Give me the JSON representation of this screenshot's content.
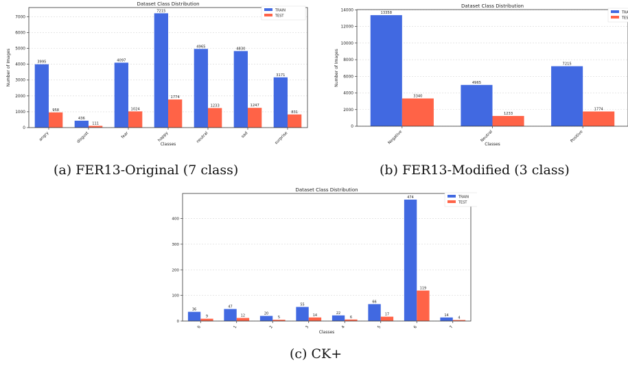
{
  "colors": {
    "train": "#4169E1",
    "test": "#FF6347",
    "axis": "#333333",
    "grid": "#d6d6d6"
  },
  "captions": {
    "a": "(a) FER13-Original (7 class)",
    "b": "(b) FER13-Modified (3 class)",
    "c": "(c) CK+"
  },
  "chart_data": [
    {
      "type": "bar",
      "title": "Dataset Class Distribution",
      "xlabel": "Classes",
      "ylabel": "Number of Images",
      "categories": [
        "angry",
        "disgust",
        "fear",
        "happy",
        "neutral",
        "sad",
        "surprise"
      ],
      "series": [
        {
          "name": "TRAIN",
          "values": [
            3995,
            436,
            4097,
            7215,
            4965,
            4830,
            3171
          ]
        },
        {
          "name": "TEST",
          "values": [
            958,
            111,
            1024,
            1774,
            1233,
            1247,
            831
          ]
        }
      ],
      "ylim": [
        0,
        7576
      ],
      "yticks": [
        0,
        1000,
        2000,
        3000,
        4000,
        5000,
        6000,
        7000
      ],
      "grid": true,
      "legend": "top-right"
    },
    {
      "type": "bar",
      "title": "Dataset Class Distribution",
      "xlabel": "Classes",
      "ylabel": "Number of Images",
      "categories": [
        "Negative",
        "Neutral",
        "Positive"
      ],
      "series": [
        {
          "name": "TRAIN",
          "values": [
            13358,
            4965,
            7215
          ]
        },
        {
          "name": "TEST",
          "values": [
            3340,
            1233,
            1774
          ]
        }
      ],
      "ylim": [
        0,
        14026
      ],
      "yticks": [
        0,
        2000,
        4000,
        6000,
        8000,
        10000,
        12000,
        14000
      ],
      "grid": true,
      "legend": "top-right"
    },
    {
      "type": "bar",
      "title": "Dataset Class Distribution",
      "xlabel": "Classes",
      "ylabel": "Number of Images",
      "categories": [
        "0",
        "1",
        "2",
        "3",
        "4",
        "5",
        "6",
        "7"
      ],
      "series": [
        {
          "name": "TRAIN",
          "values": [
            36,
            47,
            20,
            55,
            22,
            66,
            474,
            14
          ]
        },
        {
          "name": "TEST",
          "values": [
            9,
            12,
            5,
            14,
            6,
            17,
            119,
            4
          ]
        }
      ],
      "ylim": [
        0,
        498
      ],
      "yticks": [
        0,
        100,
        200,
        300,
        400
      ],
      "grid": true,
      "legend": "top-right"
    }
  ]
}
